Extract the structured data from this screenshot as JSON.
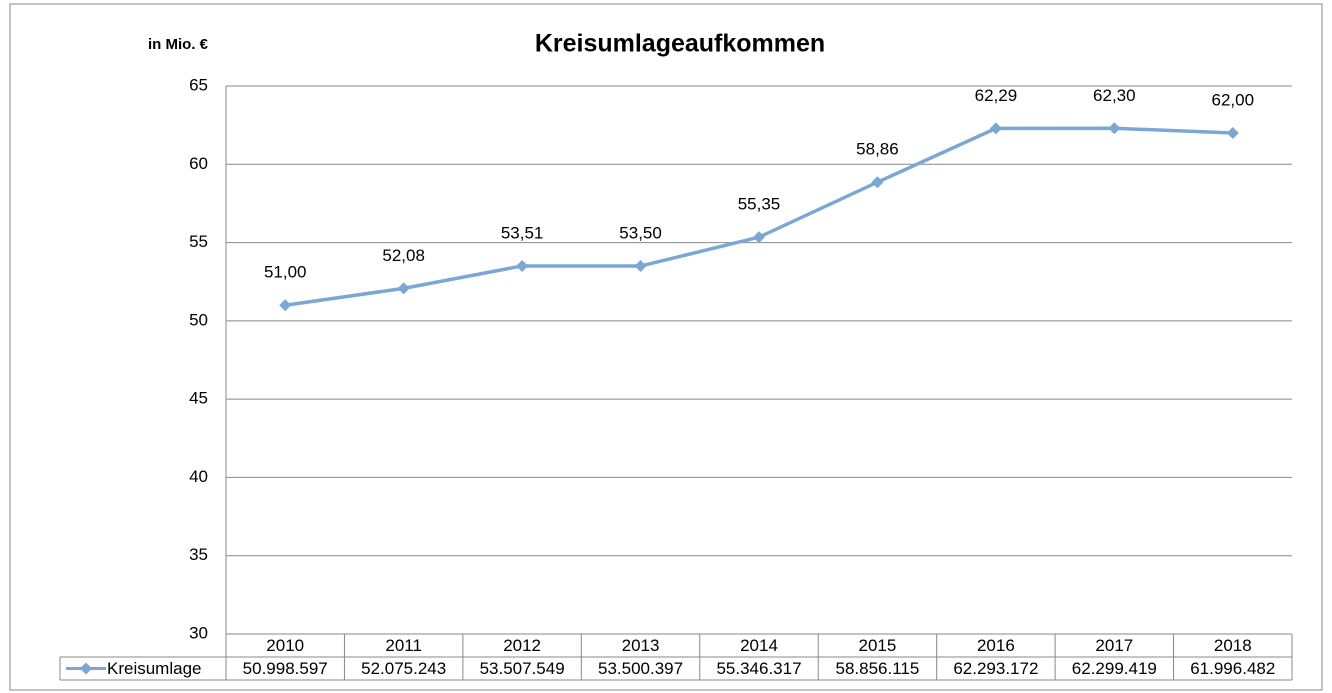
{
  "chart_data": {
    "type": "line",
    "title": "Kreisumlageaufkommen",
    "y_axis_label": "in Mio. €",
    "categories": [
      "2010",
      "2011",
      "2012",
      "2013",
      "2014",
      "2015",
      "2016",
      "2017",
      "2018"
    ],
    "series": [
      {
        "name": "Kreisumlage",
        "color": "#7ba7d4",
        "values": [
          50.998597,
          52.075243,
          53.507549,
          53.500397,
          55.346317,
          58.856115,
          62.293172,
          62.299419,
          61.996482
        ],
        "value_labels": [
          "51,00",
          "52,08",
          "53,51",
          "53,50",
          "55,35",
          "58,86",
          "62,29",
          "62,30",
          "62,00"
        ],
        "table_values": [
          "50.998.597",
          "52.075.243",
          "53.507.549",
          "53.500.397",
          "55.346.317",
          "58.856.115",
          "62.293.172",
          "62.299.419",
          "61.996.482"
        ]
      }
    ],
    "ylim": [
      30,
      65
    ],
    "yticks": [
      30,
      35,
      40,
      45,
      50,
      55,
      60,
      65
    ],
    "grid": true
  }
}
